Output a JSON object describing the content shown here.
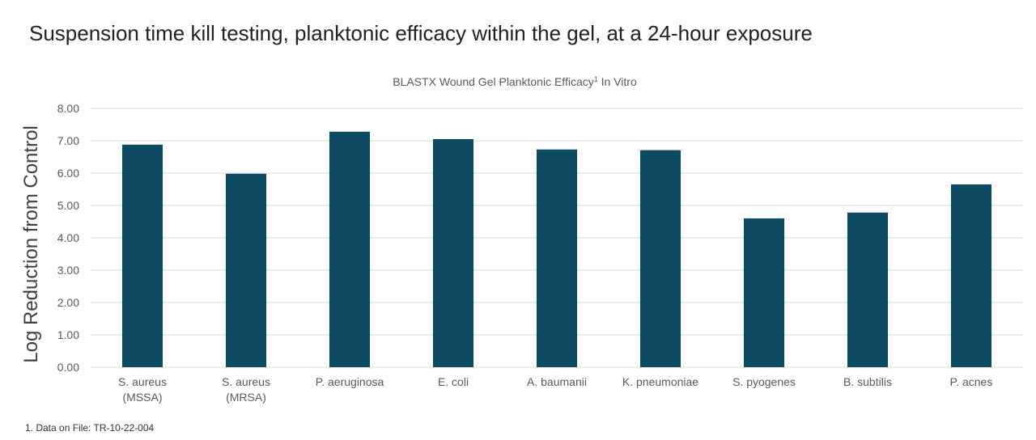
{
  "heading": "Suspension time kill testing, planktonic efficacy within the gel, at a 24-hour exposure",
  "footnote": "1. Data on File: TR-10-22-004",
  "colors": {
    "bar": "#0e4b62",
    "grid": "#d9d9d9",
    "axis_text": "#595959"
  },
  "chart_data": {
    "type": "bar",
    "title": "BLASTX Wound Gel Planktonic Efficacy",
    "title_superscript": "1",
    "title_suffix": " In Vitro",
    "xlabel": "",
    "ylabel": "Log Reduction from Control",
    "ylim": [
      0,
      8
    ],
    "y_ticks": [
      "0.00",
      "1.00",
      "2.00",
      "3.00",
      "4.00",
      "5.00",
      "6.00",
      "7.00",
      "8.00"
    ],
    "grid": true,
    "legend": "none",
    "categories": [
      [
        "S. aureus",
        "(MSSA)"
      ],
      [
        "S. aureus",
        "(MRSA)"
      ],
      [
        "P. aeruginosa"
      ],
      [
        "E. coli"
      ],
      [
        "A. baumanii"
      ],
      [
        "K. pneumoniae"
      ],
      [
        "S. pyogenes"
      ],
      [
        "B. subtilis"
      ],
      [
        "P. acnes"
      ]
    ],
    "values": [
      6.88,
      5.98,
      7.28,
      7.05,
      6.73,
      6.71,
      4.6,
      4.78,
      5.65
    ]
  }
}
